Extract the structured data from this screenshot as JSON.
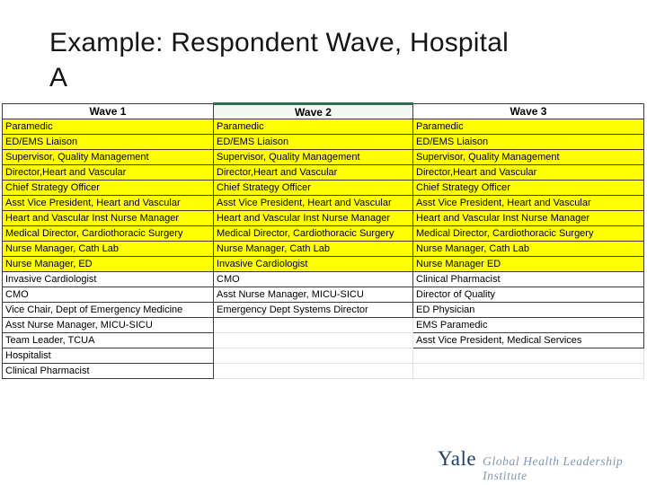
{
  "title": {
    "full": "Example: Respondent Wave, Hospital A",
    "lines": [
      "Example: Respondent Wave, Hospital",
      "A"
    ]
  },
  "table": {
    "highlight_color": "#ffff00",
    "selection_color": "#2f6b4f",
    "columns": [
      {
        "header": "Wave 1",
        "selected": false,
        "highlighted_rows": 10,
        "cells": [
          "Paramedic",
          "ED/EMS Liaison",
          "Supervisor, Quality Management",
          "Director,Heart and Vascular",
          "Chief Strategy Officer",
          "Asst Vice President, Heart and Vascular",
          "Heart and Vascular Inst Nurse Manager",
          "Medical Director, Cardiothoracic Surgery",
          "Nurse Manager, Cath Lab",
          "Nurse Manager, ED",
          "Invasive Cardiologist",
          "CMO",
          "Vice Chair, Dept of Emergency Medicine",
          "Asst Nurse Manager, MICU-SICU",
          "Team Leader, TCUA",
          "Hospitalist",
          "Clinical Pharmacist"
        ]
      },
      {
        "header": "Wave 2",
        "selected": true,
        "highlighted_rows": 10,
        "cells": [
          "Paramedic",
          "ED/EMS Liaison",
          "Supervisor, Quality Management",
          "Director,Heart and Vascular",
          "Chief Strategy Officer",
          "Asst Vice President, Heart and Vascular",
          "Heart and Vascular Inst Nurse Manager",
          "Medical Director, Cardiothoracic Surgery",
          "Nurse Manager, Cath Lab",
          "Invasive Cardiologist",
          "CMO",
          "Asst Nurse Manager, MICU-SICU",
          "Emergency Dept Systems Director",
          "",
          "",
          "",
          ""
        ]
      },
      {
        "header": "Wave 3",
        "selected": false,
        "highlighted_rows": 10,
        "cells": [
          "Paramedic",
          "ED/EMS Liaison",
          "Supervisor, Quality Management",
          "Director,Heart and Vascular",
          "Chief Strategy Officer",
          "Asst Vice President, Heart and Vascular",
          "Heart and Vascular Inst Nurse Manager",
          "Medical Director, Cardiothoracic Surgery",
          "Nurse Manager, Cath Lab",
          "Nurse Manager ED",
          "Clinical Pharmacist",
          "Director of Quality",
          "ED Physician",
          "EMS Paramedic",
          "Asst Vice President, Medical Services",
          "",
          ""
        ]
      }
    ]
  },
  "logo": {
    "wordmark": "Yale",
    "tagline": "Global Health Leadership Institute",
    "wordmark_color": "#1f3f63",
    "tagline_color": "#8296ae"
  }
}
